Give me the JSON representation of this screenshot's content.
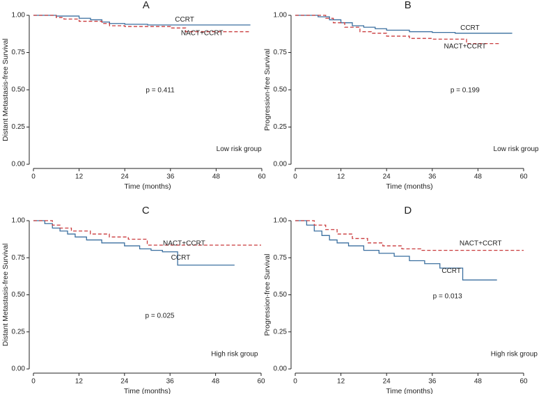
{
  "chart_data": [
    {
      "type": "step",
      "title": "A",
      "xlabel": "Time (months)",
      "ylabel": "Distant Metastasis-free Survival",
      "xlim": [
        0,
        60
      ],
      "ylim": [
        0,
        1
      ],
      "xticks": [
        0,
        12,
        24,
        36,
        48,
        60
      ],
      "yticks": [
        {
          "value": 0,
          "label": "0.00"
        },
        {
          "value": 0.25,
          "label": "0.25"
        },
        {
          "value": 0.5,
          "label": "0.50"
        },
        {
          "value": 0.75,
          "label": "0.75"
        },
        {
          "value": 1,
          "label": "1.00"
        }
      ],
      "p_value": "p = 0.411",
      "group": "Low risk group",
      "series": [
        {
          "name": "CCRT",
          "color": "#3a6f9f",
          "dashed": false,
          "x": [
            0,
            6,
            6,
            12,
            12,
            15,
            15,
            18,
            18,
            20,
            20,
            24,
            24,
            30,
            30,
            57
          ],
          "values": [
            1,
            1,
            0.995,
            0.995,
            0.98,
            0.98,
            0.97,
            0.97,
            0.955,
            0.955,
            0.945,
            0.945,
            0.94,
            0.94,
            0.935,
            0.935
          ]
        },
        {
          "name": "NACT+CCRT",
          "color": "#c9393b",
          "dashed": true,
          "x": [
            0,
            6,
            6,
            8,
            8,
            12,
            12,
            18,
            18,
            20,
            20,
            24,
            24,
            36,
            36,
            40,
            40,
            48,
            48,
            57
          ],
          "values": [
            1,
            1,
            0.985,
            0.985,
            0.975,
            0.975,
            0.96,
            0.96,
            0.945,
            0.945,
            0.93,
            0.93,
            0.925,
            0.925,
            0.915,
            0.915,
            0.89,
            0.89,
            0.89,
            0.89
          ]
        }
      ]
    },
    {
      "type": "step",
      "title": "B",
      "xlabel": "Time (months)",
      "ylabel": "Progression-free Survival",
      "xlim": [
        0,
        60
      ],
      "ylim": [
        0,
        1
      ],
      "xticks": [
        0,
        12,
        24,
        36,
        48,
        60
      ],
      "yticks": [
        {
          "value": 0,
          "label": "0.00"
        },
        {
          "value": 0.25,
          "label": "0.25"
        },
        {
          "value": 0.5,
          "label": "0.50"
        },
        {
          "value": 0.75,
          "label": "0.75"
        },
        {
          "value": 1,
          "label": "1.00"
        }
      ],
      "p_value": "p = 0.199",
      "group": "Low risk group",
      "series": [
        {
          "name": "CCRT",
          "color": "#3a6f9f",
          "dashed": false,
          "x": [
            0,
            6,
            6,
            9,
            9,
            12,
            12,
            15,
            15,
            18,
            18,
            21,
            21,
            24,
            24,
            30,
            30,
            36,
            36,
            42,
            42,
            48,
            48,
            57
          ],
          "values": [
            1,
            1,
            0.99,
            0.99,
            0.97,
            0.97,
            0.95,
            0.95,
            0.93,
            0.93,
            0.92,
            0.92,
            0.91,
            0.91,
            0.9,
            0.9,
            0.89,
            0.89,
            0.885,
            0.885,
            0.88,
            0.88,
            0.88,
            0.88
          ]
        },
        {
          "name": "NACT+CCRT",
          "color": "#c9393b",
          "dashed": true,
          "x": [
            0,
            8,
            8,
            10,
            10,
            13,
            13,
            17,
            17,
            20,
            20,
            24,
            24,
            30,
            30,
            36,
            36,
            45,
            45,
            48,
            48,
            54
          ],
          "values": [
            1,
            1,
            0.98,
            0.98,
            0.95,
            0.95,
            0.92,
            0.92,
            0.89,
            0.89,
            0.88,
            0.88,
            0.86,
            0.86,
            0.845,
            0.845,
            0.84,
            0.84,
            0.81,
            0.81,
            0.81,
            0.81
          ]
        }
      ]
    },
    {
      "type": "step",
      "title": "C",
      "xlabel": "Time (months)",
      "ylabel": "Distant Metastasis-free Survival",
      "xlim": [
        0,
        60
      ],
      "ylim": [
        0,
        1
      ],
      "xticks": [
        0,
        12,
        24,
        36,
        48,
        60
      ],
      "yticks": [
        {
          "value": 0,
          "label": "0.00"
        },
        {
          "value": 0.25,
          "label": "0.25"
        },
        {
          "value": 0.5,
          "label": "0.50"
        },
        {
          "value": 0.75,
          "label": "0.75"
        },
        {
          "value": 1,
          "label": "1.00"
        }
      ],
      "p_value": "p = 0.025",
      "group": "High risk group",
      "series": [
        {
          "name": "CCRT",
          "color": "#3a6f9f",
          "dashed": false,
          "x": [
            0,
            3,
            3,
            5,
            5,
            7,
            7,
            9,
            9,
            11,
            11,
            14,
            14,
            18,
            18,
            24,
            24,
            28,
            28,
            31,
            31,
            34,
            34,
            38,
            38,
            50,
            50,
            53
          ],
          "values": [
            1,
            1,
            0.98,
            0.98,
            0.95,
            0.95,
            0.93,
            0.93,
            0.91,
            0.91,
            0.89,
            0.89,
            0.87,
            0.87,
            0.85,
            0.85,
            0.83,
            0.83,
            0.81,
            0.81,
            0.8,
            0.8,
            0.79,
            0.79,
            0.7,
            0.7,
            0.7,
            0.7
          ]
        },
        {
          "name": "NACT+CCRT",
          "color": "#c9393b",
          "dashed": true,
          "x": [
            0,
            5,
            5,
            7,
            7,
            10,
            10,
            15,
            15,
            20,
            20,
            25,
            25,
            30,
            30,
            50,
            50,
            60
          ],
          "values": [
            1,
            1,
            0.97,
            0.97,
            0.95,
            0.95,
            0.93,
            0.93,
            0.91,
            0.91,
            0.89,
            0.89,
            0.875,
            0.875,
            0.835,
            0.835,
            0.835,
            0.835
          ]
        }
      ]
    },
    {
      "type": "step",
      "title": "D",
      "xlabel": "Time (months)",
      "ylabel": "Progression-free Survival",
      "xlim": [
        0,
        60
      ],
      "ylim": [
        0,
        1
      ],
      "xticks": [
        0,
        12,
        24,
        36,
        48,
        60
      ],
      "yticks": [
        {
          "value": 0,
          "label": "0.00"
        },
        {
          "value": 0.25,
          "label": "0.25"
        },
        {
          "value": 0.5,
          "label": "0.50"
        },
        {
          "value": 0.75,
          "label": "0.75"
        },
        {
          "value": 1,
          "label": "1.00"
        }
      ],
      "p_value": "p = 0.013",
      "group": "High risk group",
      "series": [
        {
          "name": "CCRT",
          "color": "#3a6f9f",
          "dashed": false,
          "x": [
            0,
            3,
            3,
            5,
            5,
            7,
            7,
            9,
            9,
            11,
            11,
            14,
            14,
            18,
            18,
            22,
            22,
            26,
            26,
            30,
            30,
            34,
            34,
            38,
            38,
            44,
            44,
            50,
            50,
            53
          ],
          "values": [
            1,
            1,
            0.97,
            0.97,
            0.93,
            0.93,
            0.9,
            0.9,
            0.87,
            0.87,
            0.85,
            0.85,
            0.83,
            0.83,
            0.8,
            0.8,
            0.78,
            0.78,
            0.76,
            0.76,
            0.73,
            0.73,
            0.71,
            0.71,
            0.68,
            0.68,
            0.6,
            0.6,
            0.6,
            0.6
          ]
        },
        {
          "name": "NACT+CCRT",
          "color": "#c9393b",
          "dashed": true,
          "x": [
            0,
            5,
            5,
            8,
            8,
            11,
            11,
            15,
            15,
            19,
            19,
            23,
            23,
            28,
            28,
            33,
            33,
            36,
            36,
            60
          ],
          "values": [
            1,
            1,
            0.97,
            0.97,
            0.94,
            0.94,
            0.91,
            0.91,
            0.88,
            0.88,
            0.85,
            0.85,
            0.83,
            0.83,
            0.81,
            0.81,
            0.8,
            0.8,
            0.8,
            0.8
          ]
        }
      ]
    }
  ]
}
